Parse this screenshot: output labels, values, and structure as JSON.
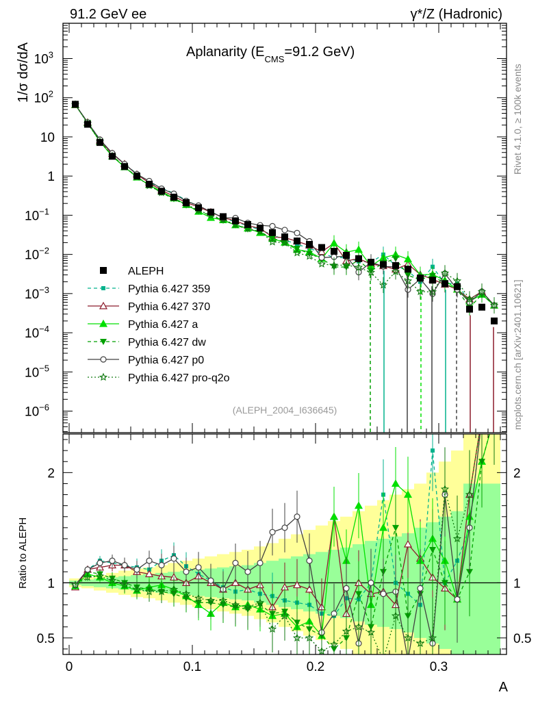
{
  "header": {
    "left": "91.2 GeV ee",
    "right": "γ*/Z (Hadronic)",
    "side_top": "Rivet 4.1.0, ≥ 100k events",
    "side_bottom": "mcplots.cern.ch [arXiv:2401.10621]"
  },
  "chart_data": {
    "type": "line",
    "title_main": "Aplanarity (E",
    "title_sub": "CMS",
    "title_tail": "=91.2 GeV)",
    "analysis_tag": "(ALEPH_2004_I636645)",
    "xlabel": "A",
    "ylabel_top": "1/σ  dσ/dA",
    "ylabel_bottom": "Ratio to ALEPH",
    "xlim": [
      -0.005,
      0.355
    ],
    "ylim_top_log10": [
      -6.55,
      3.9
    ],
    "ylim_ratio": [
      0.35,
      2.35
    ],
    "x_ticks": [
      {
        "v": 0,
        "label": "0"
      },
      {
        "v": 0.1,
        "label": "0.1"
      },
      {
        "v": 0.2,
        "label": "0.2"
      },
      {
        "v": 0.3,
        "label": "0.3"
      }
    ],
    "y_ticks_top": [
      {
        "exp": 3,
        "base": "10",
        "sup": "3"
      },
      {
        "exp": 2,
        "base": "10",
        "sup": "2"
      },
      {
        "exp": 1,
        "base": "10",
        "sup": ""
      },
      {
        "exp": 0,
        "base": "1",
        "sup": ""
      },
      {
        "exp": -1,
        "base": "10",
        "sup": "−1"
      },
      {
        "exp": -2,
        "base": "10",
        "sup": "−2"
      },
      {
        "exp": -3,
        "base": "10",
        "sup": "−3"
      },
      {
        "exp": -4,
        "base": "10",
        "sup": "−4"
      },
      {
        "exp": -5,
        "base": "10",
        "sup": "−5"
      },
      {
        "exp": -6,
        "base": "10",
        "sup": "−6"
      }
    ],
    "y_ticks_ratio": [
      {
        "v": 0.5,
        "label": "0.5"
      },
      {
        "v": 1,
        "label": "1"
      },
      {
        "v": 2,
        "label": "2"
      }
    ],
    "x": [
      0.005,
      0.015,
      0.025,
      0.035,
      0.045,
      0.055,
      0.065,
      0.075,
      0.085,
      0.095,
      0.105,
      0.115,
      0.125,
      0.135,
      0.145,
      0.155,
      0.165,
      0.175,
      0.185,
      0.195,
      0.205,
      0.215,
      0.225,
      0.235,
      0.245,
      0.255,
      0.265,
      0.275,
      0.285,
      0.295,
      0.305,
      0.315,
      0.325,
      0.335,
      0.345
    ],
    "data": {
      "name": "ALEPH",
      "values": [
        68,
        21,
        7.2,
        3.2,
        1.75,
        1.0,
        0.62,
        0.41,
        0.29,
        0.21,
        0.155,
        0.12,
        0.092,
        0.072,
        0.058,
        0.047,
        0.036,
        0.028,
        0.022,
        0.018,
        0.015,
        0.012,
        0.0095,
        0.0078,
        0.0063,
        0.0055,
        0.0052,
        0.0042,
        0.0025,
        0.0022,
        0.0018,
        0.0015,
        0.0004,
        0.00045,
        0.0002
      ]
    },
    "band_inner_halfwidth": [
      0.02,
      0.03,
      0.04,
      0.05,
      0.06,
      0.07,
      0.08,
      0.09,
      0.1,
      0.11,
      0.12,
      0.13,
      0.14,
      0.15,
      0.16,
      0.18,
      0.2,
      0.22,
      0.24,
      0.26,
      0.28,
      0.3,
      0.32,
      0.35,
      0.38,
      0.4,
      0.42,
      0.45,
      0.5,
      0.55,
      0.6,
      0.65,
      0.9,
      0.9,
      0.9
    ],
    "band_outer_halfwidth": [
      0.04,
      0.05,
      0.07,
      0.09,
      0.11,
      0.13,
      0.14,
      0.16,
      0.18,
      0.2,
      0.22,
      0.24,
      0.26,
      0.28,
      0.3,
      0.33,
      0.36,
      0.4,
      0.44,
      0.48,
      0.52,
      0.56,
      0.6,
      0.65,
      0.7,
      0.75,
      0.8,
      0.85,
      0.9,
      1.0,
      1.1,
      1.2,
      1.5,
      1.5,
      1.5
    ],
    "series": [
      {
        "name": "Pythia 6.427 359",
        "color": "#00b28c",
        "dash": "5,4",
        "marker": "square",
        "ratio": [
          0.97,
          1.12,
          1.2,
          1.18,
          1.16,
          1.14,
          1.12,
          1.2,
          1.25,
          1.15,
          1.08,
          1.02,
          0.96,
          0.92,
          0.94,
          0.9,
          0.88,
          0.84,
          0.82,
          0.8,
          0.72,
          0.7,
          0.86,
          0.85,
          1.0,
          1.8,
          1.0,
          0.9,
          0.8,
          2.2,
          1.0,
          1.2,
          1.5,
          2.5,
          2.5
        ]
      },
      {
        "name": "Pythia 6.427 370",
        "color": "#8b1a2a",
        "dash": "",
        "marker": "triangle-open",
        "ratio": [
          0.96,
          1.12,
          1.14,
          1.16,
          1.16,
          1.1,
          1.08,
          1.06,
          1.05,
          1.0,
          1.06,
          1.0,
          0.94,
          1.0,
          0.94,
          0.98,
          0.78,
          0.96,
          0.98,
          0.94,
          0.78,
          1.6,
          0.72,
          1.0,
          0.9,
          0.92,
          0.8,
          1.35,
          1.22,
          1.05,
          0.95,
          0.85,
          1.8,
          2.5,
          2.5
        ]
      },
      {
        "name": "Pythia 6.427 a",
        "color": "#00e000",
        "dash": "",
        "marker": "triangle",
        "ratio": [
          0.97,
          1.08,
          1.05,
          1.0,
          0.97,
          0.93,
          0.96,
          0.98,
          0.94,
          0.88,
          0.8,
          0.72,
          0.82,
          0.78,
          0.8,
          0.76,
          0.7,
          0.72,
          0.6,
          0.65,
          0.52,
          1.6,
          1.2,
          1.7,
          0.8,
          1.5,
          1.9,
          1.8,
          1.2,
          1.4,
          1.2,
          0.85,
          1.6,
          2.1,
          2.5
        ]
      },
      {
        "name": "Pythia 6.427 dw",
        "color": "#00a000",
        "dash": "5,4",
        "marker": "triangle-down",
        "ratio": [
          0.97,
          1.1,
          1.08,
          1.04,
          1.0,
          0.96,
          0.94,
          0.92,
          0.9,
          0.86,
          0.82,
          0.82,
          0.8,
          0.78,
          0.76,
          0.8,
          0.72,
          0.74,
          0.64,
          0.58,
          0.52,
          0.4,
          0.5,
          0.9,
          0.6,
          1.1,
          1.5,
          0.7,
          0.9,
          1.3,
          1.0,
          0.85,
          1.1,
          2.1,
          2.5
        ]
      },
      {
        "name": "Pythia 6.427 p0",
        "color": "#404040",
        "dash": "",
        "marker": "circle-open",
        "ratio": [
          0.98,
          1.12,
          1.18,
          1.2,
          1.16,
          1.12,
          1.2,
          1.16,
          1.22,
          1.1,
          1.14,
          1.02,
          0.94,
          1.18,
          1.1,
          1.18,
          1.46,
          1.5,
          1.6,
          1.2,
          0.55,
          0.72,
          0.95,
          0.45,
          1.0,
          0.9,
          0.92,
          0.3,
          0.95,
          0.45,
          1.8,
          0.85,
          1.5,
          2.5,
          2.5
        ]
      },
      {
        "name": "Pythia 6.427 pro-q2o",
        "color": "#107a10",
        "dash": "2,3",
        "marker": "star-open",
        "ratio": [
          0.98,
          1.05,
          1.06,
          1.02,
          0.98,
          0.94,
          0.92,
          0.92,
          0.94,
          0.9,
          0.86,
          0.84,
          0.84,
          0.8,
          0.78,
          0.82,
          0.58,
          0.7,
          0.5,
          0.5,
          0.38,
          0.44,
          0.56,
          0.6,
          0.55,
          0.3,
          0.7,
          0.5,
          0.45,
          0.5,
          1.85,
          1.4,
          1.8,
          2.5,
          2.5
        ]
      }
    ]
  }
}
